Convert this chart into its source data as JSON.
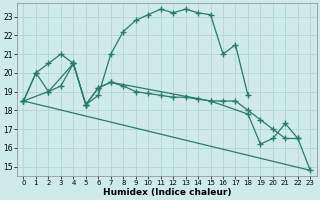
{
  "xlabel": "Humidex (Indice chaleur)",
  "xlim": [
    -0.5,
    23.5
  ],
  "ylim": [
    14.5,
    23.7
  ],
  "xticks": [
    0,
    1,
    2,
    3,
    4,
    5,
    6,
    7,
    8,
    9,
    10,
    11,
    12,
    13,
    14,
    15,
    16,
    17,
    18,
    19,
    20,
    21,
    22,
    23
  ],
  "yticks": [
    15,
    16,
    17,
    18,
    19,
    20,
    21,
    22,
    23
  ],
  "bg_color": "#ceeaea",
  "grid_color": "#b0d0d0",
  "line_color": "#2a7a6a",
  "line1_x": [
    0,
    1,
    2,
    3,
    4,
    5,
    6,
    7,
    8,
    9,
    10,
    11,
    12,
    13,
    14,
    15,
    16,
    17,
    18
  ],
  "line1_y": [
    18.5,
    20.0,
    20.5,
    21.0,
    20.5,
    18.3,
    18.8,
    21.0,
    22.2,
    22.8,
    23.1,
    23.4,
    23.2,
    23.4,
    23.2,
    23.1,
    21.0,
    21.5,
    18.8
  ],
  "line2_x": [
    0,
    1,
    2,
    3,
    4,
    5,
    6,
    7,
    8,
    9,
    10,
    11,
    12,
    13,
    14,
    15,
    16,
    17,
    18,
    19,
    20,
    21,
    22
  ],
  "line2_y": [
    18.5,
    20.0,
    19.0,
    19.3,
    20.5,
    18.3,
    19.2,
    19.5,
    19.3,
    19.0,
    18.9,
    18.8,
    18.7,
    18.7,
    18.6,
    18.5,
    18.5,
    18.5,
    18.0,
    17.5,
    17.0,
    16.5,
    16.5
  ],
  "line3_x": [
    0,
    2,
    4,
    5,
    6,
    7,
    15,
    18,
    19,
    20,
    21,
    22,
    23
  ],
  "line3_y": [
    18.5,
    19.0,
    20.5,
    18.3,
    19.2,
    19.5,
    18.5,
    17.8,
    16.2,
    16.5,
    17.3,
    16.5,
    14.8
  ],
  "line4_x": [
    0,
    23
  ],
  "line4_y": [
    18.5,
    14.8
  ]
}
